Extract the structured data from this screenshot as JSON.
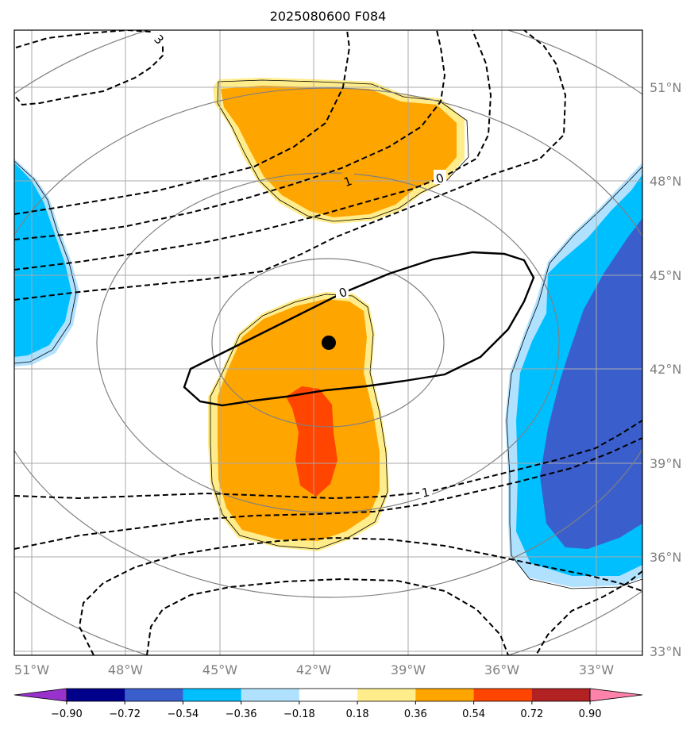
{
  "title": "2025080600 F084",
  "lat_labels": [
    "51°N",
    "48°N",
    "45°N",
    "42°N",
    "39°N",
    "36°N",
    "33°N"
  ],
  "lon_labels": [
    "51°W",
    "48°W",
    "45°W",
    "42°W",
    "39°W",
    "36°W",
    "33°W"
  ],
  "contour_labels": [
    {
      "id": "c3",
      "text": "3"
    },
    {
      "id": "c1top",
      "text": "1"
    },
    {
      "id": "c0top",
      "text": "0"
    },
    {
      "id": "c0mid",
      "text": "0"
    },
    {
      "id": "c1bot",
      "text": "1"
    }
  ],
  "colorbar": {
    "ticks": [
      "−0.90",
      "−0.72",
      "−0.54",
      "−0.36",
      "−0.18",
      "0.18",
      "0.36",
      "0.54",
      "0.72",
      "0.90"
    ],
    "colors": [
      "#9932cc",
      "#00008b",
      "#3a5fcd",
      "#00bfff",
      "#b0e2ff",
      "#ffffff",
      "#ffec8b",
      "#ffa500",
      "#ff4500",
      "#b22222",
      "#ff82ab"
    ]
  },
  "colors": {
    "orange": "#ffa500",
    "light_yellow": "#ffec8b",
    "red_orange": "#ff4500",
    "deep_sky_blue": "#00bfff",
    "light_sky_blue": "#b0e2ff",
    "royal_blue": "#3a5fcd",
    "grid": "#a9a9a9",
    "circle": "#808080"
  },
  "center_marker": "filled-circle"
}
